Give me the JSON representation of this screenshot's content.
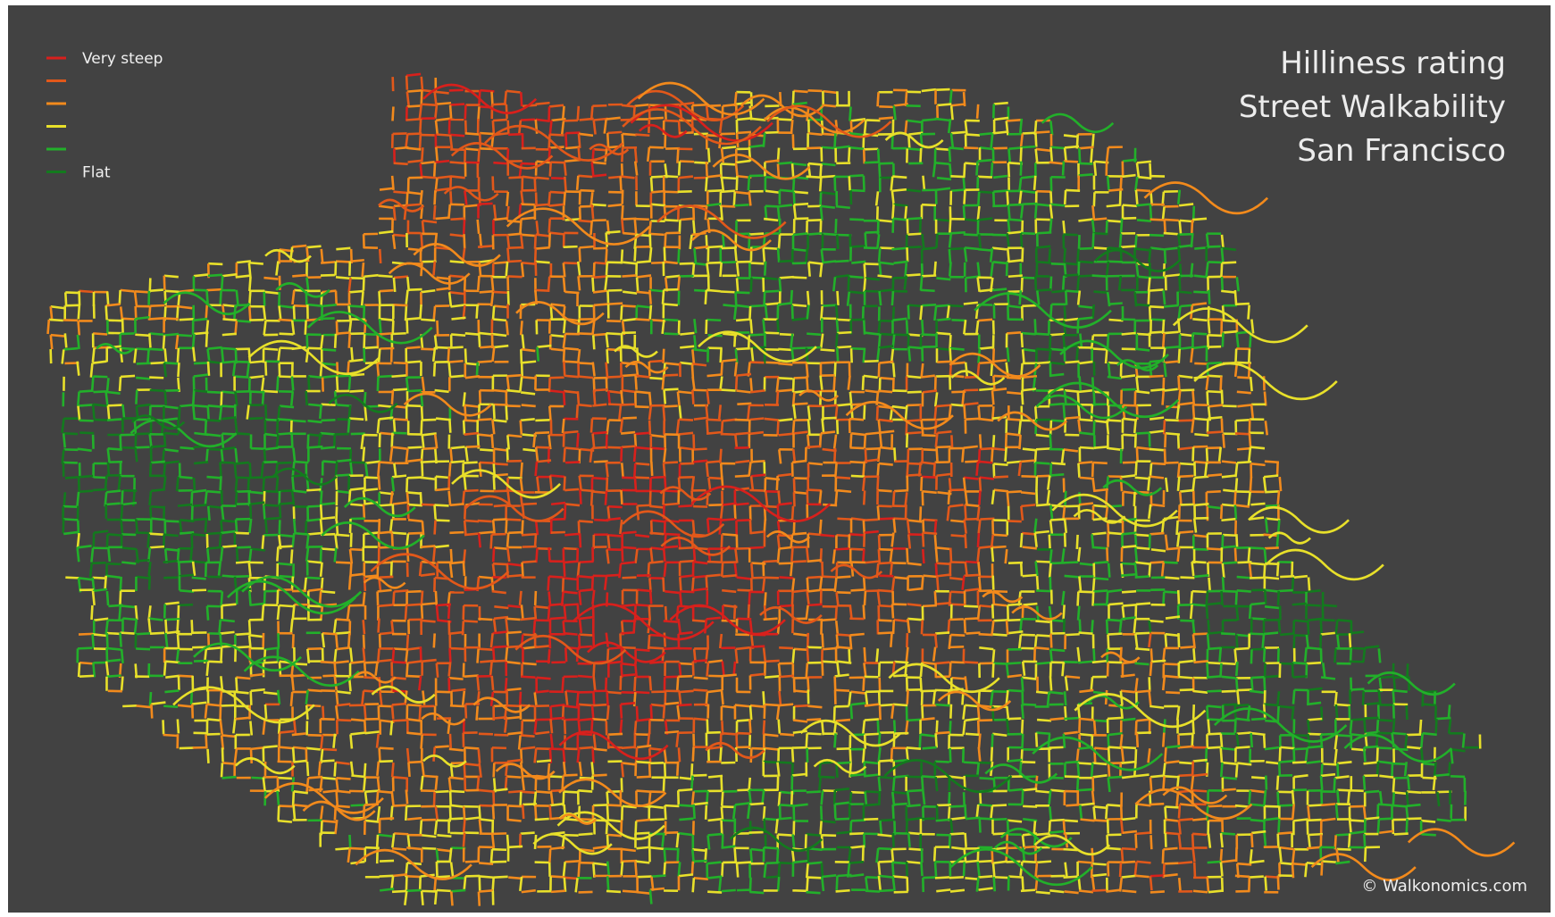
{
  "title": {
    "lines": [
      "Hilliness rating",
      "Street Walkability",
      "San Francisco"
    ]
  },
  "legend": {
    "items": [
      {
        "color": "#d8201c",
        "label": "Very steep"
      },
      {
        "color": "#e2581a"
      },
      {
        "color": "#f28a1c"
      },
      {
        "color": "#e8e02a"
      },
      {
        "color": "#22b02a"
      },
      {
        "color": "#137a1e",
        "label": "Flat"
      }
    ]
  },
  "credit": "© Walkonomics.com"
}
